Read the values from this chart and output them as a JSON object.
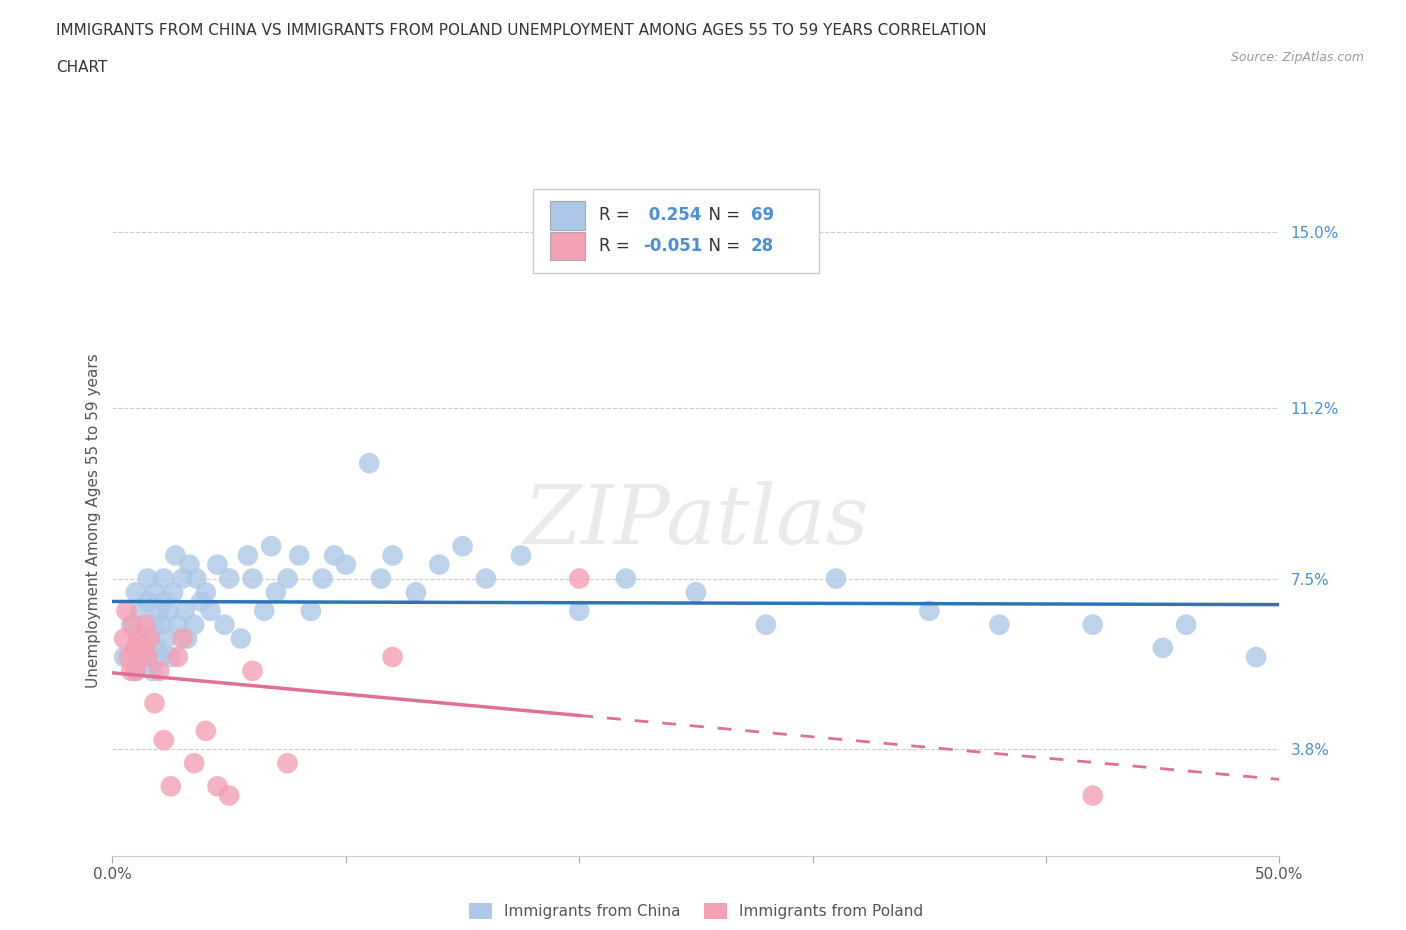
{
  "title_line1": "IMMIGRANTS FROM CHINA VS IMMIGRANTS FROM POLAND UNEMPLOYMENT AMONG AGES 55 TO 59 YEARS CORRELATION",
  "title_line2": "CHART",
  "source": "Source: ZipAtlas.com",
  "ylabel": "Unemployment Among Ages 55 to 59 years",
  "xlim": [
    0.0,
    0.5
  ],
  "ylim": [
    0.015,
    0.16
  ],
  "right_yticks": [
    0.038,
    0.075,
    0.112,
    0.15
  ],
  "right_yticklabels": [
    "3.8%",
    "7.5%",
    "11.2%",
    "15.0%"
  ],
  "hlines": [
    0.038,
    0.075,
    0.112,
    0.15
  ],
  "china_color": "#adc8e8",
  "china_color_line": "#2e75b6",
  "poland_color": "#f4a0b5",
  "poland_color_line": "#e07090",
  "china_R": 0.254,
  "china_N": 69,
  "poland_R": -0.051,
  "poland_N": 28,
  "watermark": "ZIPatlas",
  "china_scatter_x": [
    0.005,
    0.008,
    0.01,
    0.01,
    0.01,
    0.012,
    0.012,
    0.014,
    0.015,
    0.015,
    0.016,
    0.017,
    0.018,
    0.018,
    0.019,
    0.02,
    0.02,
    0.021,
    0.022,
    0.022,
    0.023,
    0.024,
    0.025,
    0.026,
    0.027,
    0.028,
    0.03,
    0.031,
    0.032,
    0.033,
    0.035,
    0.036,
    0.038,
    0.04,
    0.042,
    0.045,
    0.048,
    0.05,
    0.055,
    0.058,
    0.06,
    0.065,
    0.068,
    0.07,
    0.075,
    0.08,
    0.085,
    0.09,
    0.095,
    0.1,
    0.11,
    0.115,
    0.12,
    0.13,
    0.14,
    0.15,
    0.16,
    0.175,
    0.2,
    0.22,
    0.25,
    0.28,
    0.31,
    0.35,
    0.38,
    0.42,
    0.45,
    0.46,
    0.49
  ],
  "china_scatter_y": [
    0.058,
    0.065,
    0.072,
    0.055,
    0.06,
    0.063,
    0.068,
    0.058,
    0.07,
    0.075,
    0.062,
    0.055,
    0.065,
    0.072,
    0.06,
    0.068,
    0.058,
    0.065,
    0.075,
    0.07,
    0.062,
    0.068,
    0.058,
    0.072,
    0.08,
    0.065,
    0.075,
    0.068,
    0.062,
    0.078,
    0.065,
    0.075,
    0.07,
    0.072,
    0.068,
    0.078,
    0.065,
    0.075,
    0.062,
    0.08,
    0.075,
    0.068,
    0.082,
    0.072,
    0.075,
    0.08,
    0.068,
    0.075,
    0.08,
    0.078,
    0.1,
    0.075,
    0.08,
    0.072,
    0.078,
    0.082,
    0.075,
    0.08,
    0.068,
    0.075,
    0.072,
    0.065,
    0.075,
    0.068,
    0.065,
    0.065,
    0.06,
    0.065,
    0.058
  ],
  "poland_scatter_x": [
    0.005,
    0.006,
    0.007,
    0.008,
    0.009,
    0.01,
    0.01,
    0.011,
    0.012,
    0.013,
    0.014,
    0.015,
    0.016,
    0.018,
    0.02,
    0.022,
    0.025,
    0.028,
    0.03,
    0.035,
    0.04,
    0.045,
    0.05,
    0.06,
    0.075,
    0.12,
    0.2,
    0.42
  ],
  "poland_scatter_y": [
    0.062,
    0.068,
    0.058,
    0.055,
    0.065,
    0.06,
    0.055,
    0.062,
    0.058,
    0.06,
    0.065,
    0.058,
    0.062,
    0.048,
    0.055,
    0.04,
    0.03,
    0.058,
    0.062,
    0.035,
    0.042,
    0.03,
    0.028,
    0.055,
    0.035,
    0.058,
    0.075,
    0.028
  ],
  "poland_line_x_solid_end": 0.2,
  "china_line_x_start": 0.0,
  "china_line_x_end": 0.5,
  "poland_line_x_start": 0.0,
  "poland_line_x_end": 0.5
}
